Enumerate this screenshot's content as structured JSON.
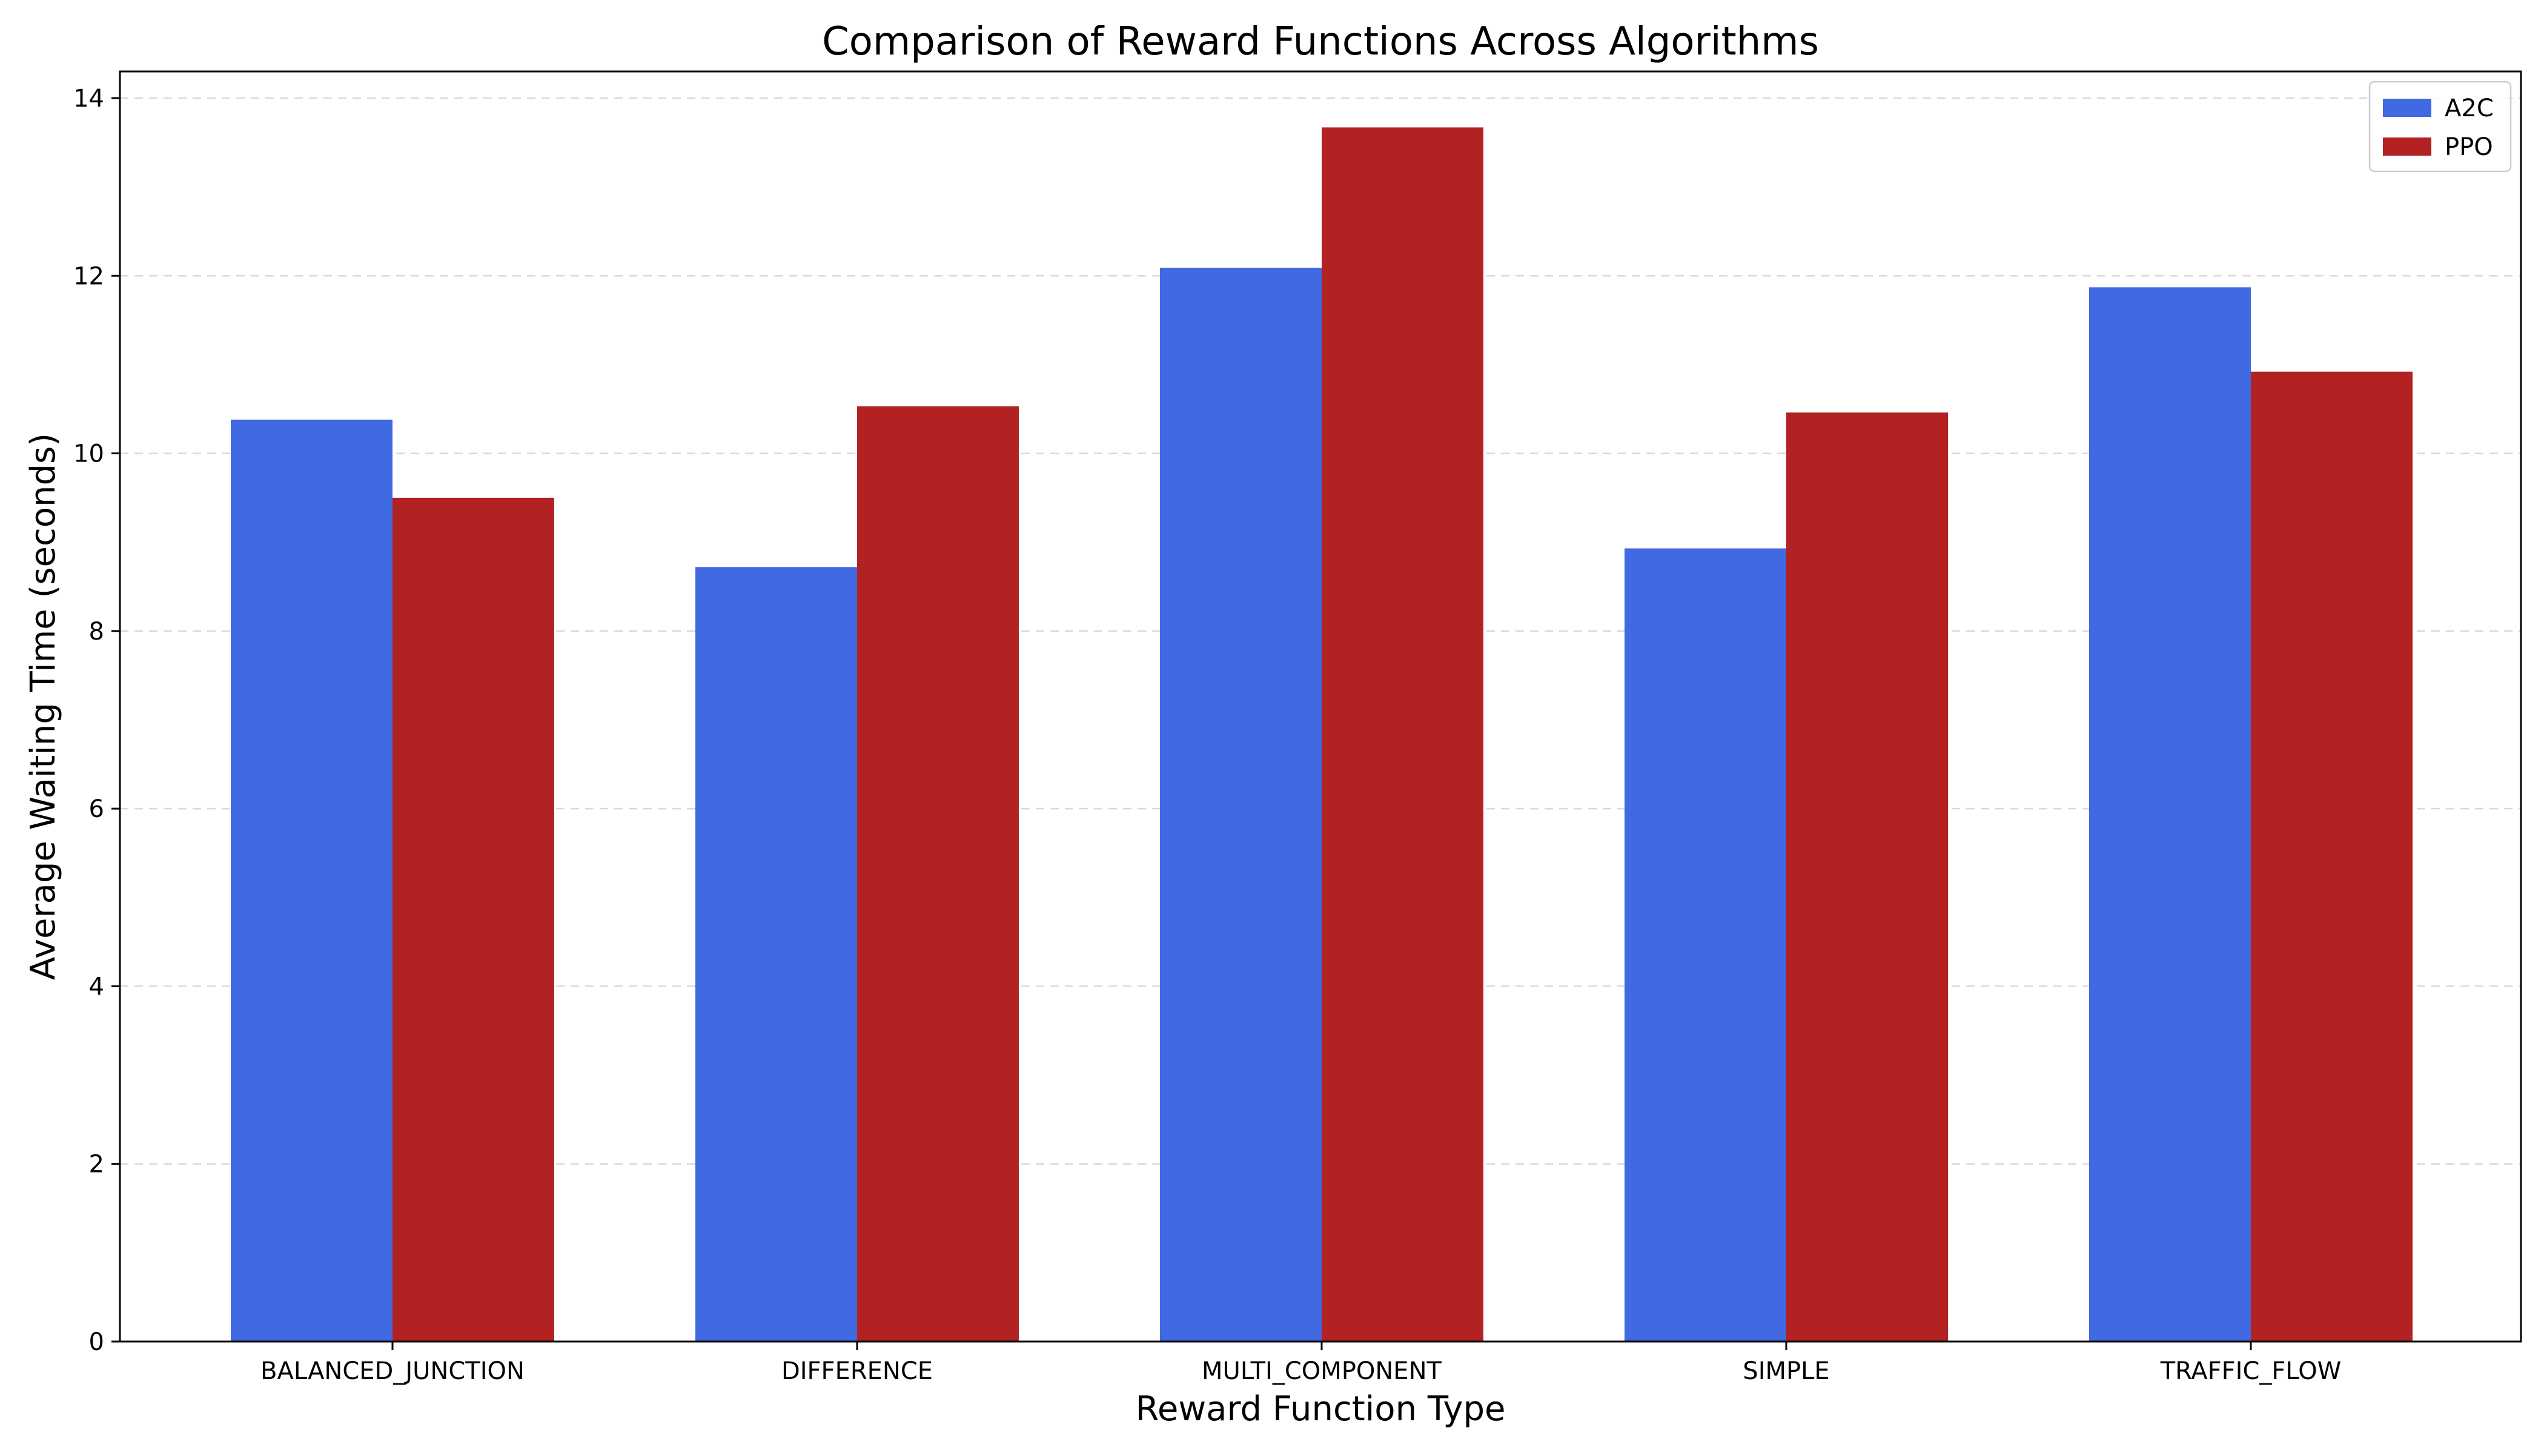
{
  "chart_data": {
    "type": "bar",
    "title": "Comparison of Reward Functions Across Algorithms",
    "xlabel": "Reward Function Type",
    "ylabel": "Average Waiting Time (seconds)",
    "categories": [
      "BALANCED_JUNCTION",
      "DIFFERENCE",
      "MULTI_COMPONENT",
      "SIMPLE",
      "TRAFFIC_FLOW"
    ],
    "series": [
      {
        "name": "A2C",
        "color": "#4169e1",
        "values": [
          10.38,
          8.72,
          12.09,
          8.93,
          11.87
        ]
      },
      {
        "name": "PPO",
        "color": "#b22222",
        "values": [
          9.5,
          10.53,
          13.67,
          10.46,
          10.92
        ]
      }
    ],
    "ylim": [
      0,
      14.3
    ],
    "yticks": [
      0,
      2,
      4,
      6,
      8,
      10,
      12,
      14
    ],
    "grid": "horizontal dashed",
    "legend_position": "top-right"
  }
}
